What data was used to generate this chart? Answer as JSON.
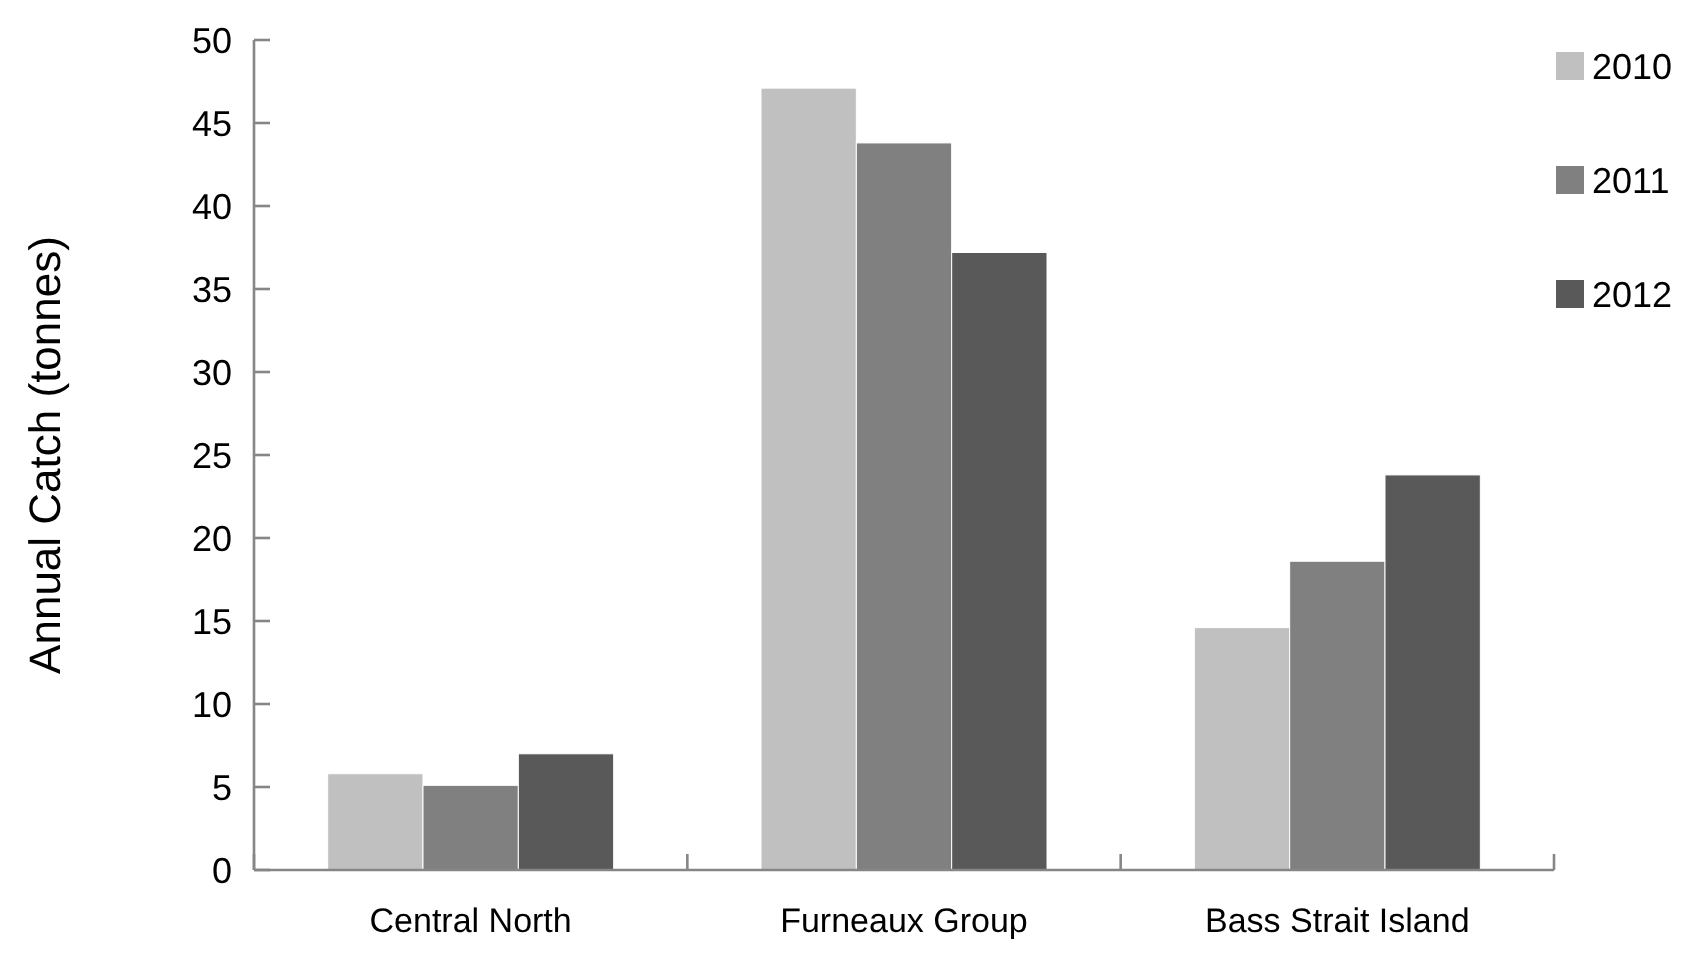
{
  "chart_data": {
    "type": "bar",
    "ylabel": "Annual Catch (tonnes)",
    "categories": [
      "Central North",
      "Furneaux Group",
      "Bass Strait Island"
    ],
    "series": [
      {
        "name": "2010",
        "color": "#c0c0c0",
        "values": [
          5.8,
          47.1,
          14.6
        ]
      },
      {
        "name": "2011",
        "color": "#808080",
        "values": [
          5.1,
          43.8,
          18.6
        ]
      },
      {
        "name": "2012",
        "color": "#595959",
        "values": [
          7.0,
          37.2,
          23.8
        ]
      }
    ],
    "ylim": [
      0,
      50
    ],
    "yticks": [
      0,
      5,
      10,
      15,
      20,
      25,
      30,
      35,
      40,
      45,
      50
    ],
    "grid": false,
    "legend": "right"
  }
}
